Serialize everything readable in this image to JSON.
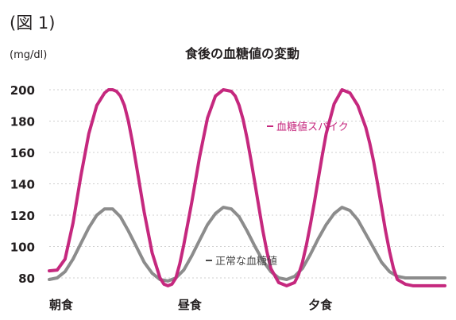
{
  "figure_label": "(図 1)",
  "chart_data": {
    "type": "line",
    "title": "食後の血糖値の変動",
    "ylabel": "(mg/dl)",
    "xlabel": "",
    "ylim": [
      80,
      200
    ],
    "yticks": [
      80,
      100,
      120,
      140,
      160,
      180,
      200
    ],
    "grid": true,
    "x_range": [
      0,
      100
    ],
    "meals": [
      {
        "label": "朝食",
        "x": 0
      },
      {
        "label": "昼食",
        "x": 32.5
      },
      {
        "label": "夕食",
        "x": 65.5
      }
    ],
    "series": [
      {
        "name": "血糖値スパイク",
        "color": "#c5287e",
        "x": [
          0,
          2,
          4,
          6,
          8,
          10,
          12,
          14,
          15,
          16,
          17,
          18,
          19,
          20,
          21,
          22,
          24,
          26,
          28,
          29,
          30,
          31,
          32,
          33,
          34,
          36,
          38,
          40,
          42,
          44,
          46,
          47,
          48,
          49,
          50,
          51,
          52,
          53,
          54,
          55,
          56,
          58,
          60,
          62,
          63,
          64,
          65,
          66,
          67,
          68,
          69,
          70,
          72,
          74,
          76,
          78,
          80,
          81,
          82,
          83,
          84,
          85,
          86,
          87,
          88,
          90,
          92,
          94,
          96,
          97,
          98,
          99,
          100
        ],
        "values": [
          84.5,
          85,
          92,
          115,
          145,
          172,
          190,
          198,
          200,
          200,
          199,
          196,
          190,
          180,
          167,
          152,
          122,
          96,
          80,
          76,
          75,
          76,
          80,
          89,
          101,
          128,
          157,
          182,
          196,
          200,
          199,
          196,
          190,
          181,
          169,
          155,
          140,
          125,
          110,
          97,
          86,
          77,
          75,
          77,
          82,
          90,
          101,
          114,
          128,
          143,
          158,
          172,
          191,
          200,
          198,
          190,
          176,
          166,
          154,
          140,
          125,
          110,
          97,
          86,
          79,
          76,
          75,
          75,
          75,
          75,
          75,
          75,
          75
        ]
      },
      {
        "name": "正常な血糖値",
        "color": "#8c8c8c",
        "x": [
          0,
          2,
          4,
          6,
          8,
          10,
          12,
          14,
          16,
          18,
          20,
          22,
          24,
          26,
          28,
          30,
          32,
          34,
          36,
          38,
          40,
          42,
          44,
          46,
          48,
          50,
          52,
          54,
          56,
          58,
          60,
          62,
          64,
          66,
          68,
          70,
          72,
          74,
          76,
          78,
          80,
          82,
          84,
          86,
          88,
          90,
          92,
          94,
          96,
          98,
          100
        ],
        "values": [
          79,
          80,
          84,
          92,
          102,
          112,
          120,
          124,
          124,
          119,
          110,
          100,
          90,
          83,
          79,
          78,
          80,
          85,
          94,
          104,
          114,
          121,
          125,
          124,
          119,
          110,
          100,
          91,
          84,
          80,
          79,
          81,
          86,
          95,
          105,
          114,
          121,
          125,
          123,
          117,
          108,
          99,
          90,
          84,
          81,
          80,
          80,
          80,
          80,
          80,
          80
        ]
      }
    ],
    "annotations": [
      {
        "text": "血糖値スパイク",
        "series": 0,
        "color": "#c5287e"
      },
      {
        "text": "正常な血糖値",
        "series": 1,
        "color": "#4a4a4a"
      }
    ]
  }
}
